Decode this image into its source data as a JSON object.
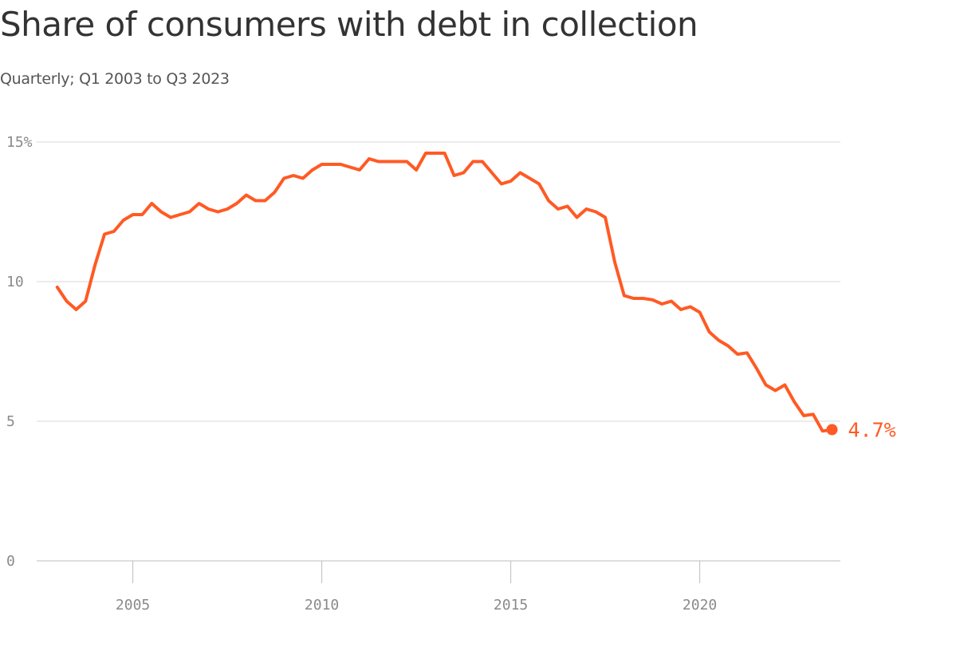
{
  "title": "Share of consumers with debt in collection",
  "subtitle": "Quarterly; Q1 2003 to Q3 2023",
  "colors": {
    "line": "#ff5a24",
    "grid": "#d9d9d9",
    "axis": "#bdbdbd",
    "tick_text": "#8a8a8a",
    "title_text": "#333333"
  },
  "chart_data": {
    "type": "line",
    "title": "Share of consumers with debt in collection",
    "subtitle": "Quarterly; Q1 2003 to Q3 2023",
    "xlabel": "",
    "ylabel": "",
    "xlim": [
      2002.5,
      2024.0
    ],
    "ylim": [
      0,
      15
    ],
    "y_ticks": [
      0,
      5,
      10,
      15
    ],
    "y_tick_labels": [
      "0",
      "5",
      "10",
      "15%"
    ],
    "x_ticks": [
      2005,
      2010,
      2015,
      2020
    ],
    "x_tick_labels": [
      "2005",
      "2010",
      "2015",
      "2020"
    ],
    "grid": true,
    "end_label": "4.7%",
    "series": [
      {
        "x": [
          2003.0,
          2003.25,
          2003.5,
          2003.75,
          2004.0,
          2004.25,
          2004.5,
          2004.75,
          2005.0,
          2005.25,
          2005.5,
          2005.75,
          2006.0,
          2006.25,
          2006.5,
          2006.75,
          2007.0,
          2007.25,
          2007.5,
          2007.75,
          2008.0,
          2008.25,
          2008.5,
          2008.75,
          2009.0,
          2009.25,
          2009.5,
          2009.75,
          2010.0,
          2010.25,
          2010.5,
          2010.75,
          2011.0,
          2011.25,
          2011.5,
          2011.75,
          2012.0,
          2012.25,
          2012.5,
          2012.75,
          2013.0,
          2013.25,
          2013.5,
          2013.75,
          2014.0,
          2014.25,
          2014.5,
          2014.75,
          2015.0,
          2015.25,
          2015.5,
          2015.75,
          2016.0,
          2016.25,
          2016.5,
          2016.75,
          2017.0,
          2017.25,
          2017.5,
          2017.75,
          2018.0,
          2018.25,
          2018.5,
          2018.75,
          2019.0,
          2019.25,
          2019.5,
          2019.75,
          2020.0,
          2020.25,
          2020.5,
          2020.75,
          2021.0,
          2021.25,
          2021.5,
          2021.75,
          2022.0,
          2022.25,
          2022.5,
          2022.75,
          2023.0,
          2023.25,
          2023.5
        ],
        "values": [
          9.8,
          9.3,
          9.0,
          9.3,
          10.6,
          11.7,
          11.8,
          12.2,
          12.4,
          12.4,
          12.8,
          12.5,
          12.3,
          12.4,
          12.5,
          12.8,
          12.6,
          12.5,
          12.6,
          12.8,
          13.1,
          12.9,
          12.9,
          13.2,
          13.7,
          13.8,
          13.7,
          14.0,
          14.2,
          14.2,
          14.2,
          14.1,
          14.0,
          14.4,
          14.3,
          14.3,
          14.3,
          14.3,
          14.0,
          14.6,
          14.6,
          14.6,
          13.8,
          13.9,
          14.3,
          14.3,
          13.9,
          13.5,
          13.6,
          13.9,
          13.7,
          13.5,
          12.9,
          12.6,
          12.7,
          12.3,
          12.6,
          12.5,
          12.3,
          10.7,
          9.5,
          9.4,
          9.4,
          9.35,
          9.2,
          9.3,
          9.0,
          9.1,
          8.9,
          8.2,
          7.9,
          7.7,
          7.4,
          7.45,
          6.9,
          6.3,
          6.1,
          6.3,
          5.7,
          5.2,
          5.25,
          4.65,
          4.7
        ]
      }
    ]
  }
}
